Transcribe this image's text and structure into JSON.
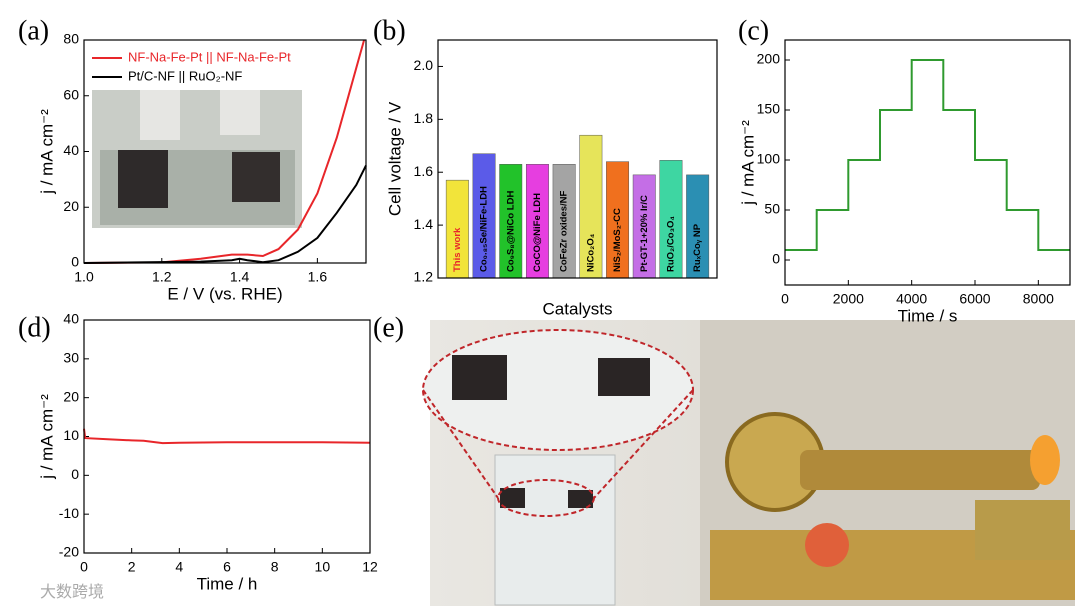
{
  "chart_data": [
    {
      "type": "line",
      "panel_label": "(a)",
      "xlabel": "E / V (vs. RHE)",
      "ylabel": "j / mA cm⁻²",
      "xlim": [
        1.0,
        1.725
      ],
      "ylim": [
        0,
        80
      ],
      "xticks": [
        {
          "value": 1.0,
          "label": "1.0"
        },
        1.2,
        1.4,
        1.6
      ],
      "yticks": [
        0,
        20,
        40,
        60,
        80
      ],
      "legend": "upper left",
      "series": [
        {
          "name": "NF-Na-Fe-Pt || NF-Na-Fe-Pt",
          "color": "#e8262a",
          "x": [
            1.0,
            1.2,
            1.3,
            1.38,
            1.42,
            1.46,
            1.5,
            1.55,
            1.6,
            1.65,
            1.68,
            1.71,
            1.72
          ],
          "values": [
            0,
            0.2,
            1.5,
            3,
            3,
            2.5,
            5,
            12,
            25,
            45,
            60,
            75,
            80
          ]
        },
        {
          "name": "Pt/C-NF || RuO₂-NF",
          "color": "#000000",
          "x": [
            1.0,
            1.3,
            1.38,
            1.4,
            1.42,
            1.46,
            1.5,
            1.55,
            1.6,
            1.65,
            1.7,
            1.725
          ],
          "values": [
            0,
            0.5,
            1,
            1.5,
            1,
            0.3,
            1,
            4,
            9,
            18,
            28,
            35
          ]
        }
      ]
    },
    {
      "type": "bar",
      "panel_label": "(b)",
      "xlabel": "Catalysts",
      "ylabel": "Cell voltage / V",
      "ylim": [
        1.2,
        2.1
      ],
      "yticks": [
        1.2,
        1.4,
        1.6,
        1.8,
        {
          "value": 2.0,
          "label": "2.0"
        }
      ],
      "categories": [
        "This work",
        "Co₀.₈₅Se/NiFe-LDH",
        "Co₉S₈@NiCo LDH",
        "CoCO@NiFe LDH",
        "CoFeZr oxides/NF",
        "NiCo₂O₄",
        "NiS₂/MoS₂-CC",
        "Pt-GT-1+20% Ir/C",
        "RuO₂/Co₃O₄",
        "RuₓCoᵧ NP"
      ],
      "values": [
        1.57,
        1.67,
        1.63,
        1.63,
        1.63,
        1.74,
        1.64,
        1.59,
        1.645,
        1.59
      ],
      "colors": [
        "#f2e43a",
        "#5b5be8",
        "#22c22a",
        "#e63ee0",
        "#a4a4a4",
        "#e6e45a",
        "#f0701e",
        "#c46ee6",
        "#3ed6a2",
        "#2b8fb3"
      ],
      "highlight_index": 0,
      "highlight_color": "#e8262a"
    },
    {
      "type": "line",
      "panel_label": "(c)",
      "xlabel": "Time / s",
      "ylabel": "j / mA cm⁻²",
      "xlim": [
        0,
        9000
      ],
      "ylim": [
        -25,
        220
      ],
      "xticks": [
        0,
        2000,
        4000,
        6000,
        8000
      ],
      "yticks": [
        0,
        50,
        100,
        150,
        200
      ],
      "x": [
        0,
        1000,
        1000,
        2000,
        2000,
        3000,
        3000,
        4000,
        4000,
        5000,
        5000,
        6000,
        6000,
        7000,
        7000,
        8000,
        8000,
        9000
      ],
      "series": [
        {
          "color": "#2f9a2f",
          "values": [
            10,
            10,
            50,
            50,
            100,
            100,
            150,
            150,
            200,
            200,
            150,
            150,
            100,
            100,
            50,
            50,
            10,
            10
          ]
        }
      ]
    },
    {
      "type": "line",
      "panel_label": "(d)",
      "xlabel": "Time / h",
      "ylabel": "j / mA cm⁻²",
      "xlim": [
        0,
        12
      ],
      "ylim": [
        -20,
        40
      ],
      "xticks": [
        0,
        2,
        4,
        6,
        8,
        10,
        12
      ],
      "yticks": [
        -20,
        -10,
        0,
        10,
        20,
        30,
        40
      ],
      "x": [
        0,
        0.05,
        1,
        2,
        2.5,
        3,
        3.3,
        4,
        6,
        8,
        10,
        12
      ],
      "series": [
        {
          "color": "#e8262a",
          "values": [
            12,
            9.6,
            9.3,
            9,
            8.9,
            8.5,
            8.3,
            8.4,
            8.5,
            8.5,
            8.5,
            8.4
          ]
        }
      ]
    }
  ],
  "photo_panel": {
    "panel_label": "(e)"
  },
  "watermark": "大数跨境"
}
